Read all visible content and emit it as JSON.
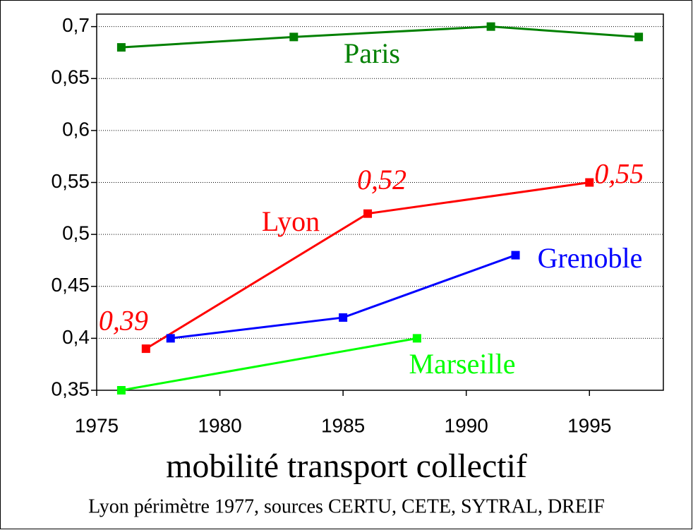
{
  "chart_data": {
    "type": "line",
    "title": "mobilité transport collectif",
    "subtitle": "Lyon périmètre 1977, sources CERTU, CETE, SYTRAL, DREIF",
    "xlim": [
      1975,
      1998
    ],
    "xticks": [
      1975,
      1980,
      1985,
      1990,
      1995
    ],
    "ylim": [
      0.35,
      0.712
    ],
    "yticks": [
      {
        "value": 0.35,
        "label": "0,35"
      },
      {
        "value": 0.4,
        "label": "0,4"
      },
      {
        "value": 0.45,
        "label": "0,45"
      },
      {
        "value": 0.5,
        "label": "0,5"
      },
      {
        "value": 0.55,
        "label": "0,55"
      },
      {
        "value": 0.6,
        "label": "0,6"
      },
      {
        "value": 0.65,
        "label": "0,65"
      },
      {
        "value": 0.7,
        "label": "0,7"
      }
    ],
    "grid": true,
    "series": [
      {
        "name": "Paris",
        "color": "#008000",
        "x": [
          1976,
          1983,
          1991,
          1997
        ],
        "values": [
          0.68,
          0.69,
          0.7,
          0.69
        ]
      },
      {
        "name": "Lyon",
        "color": "#ff0000",
        "x": [
          1977,
          1986,
          1995
        ],
        "values": [
          0.39,
          0.52,
          0.55
        ],
        "value_labels": [
          "0,39",
          "0,52",
          "0,55"
        ]
      },
      {
        "name": "Grenoble",
        "color": "#0000ff",
        "x": [
          1978,
          1985,
          1992
        ],
        "values": [
          0.4,
          0.42,
          0.48
        ]
      },
      {
        "name": "Marseille",
        "color": "#00ff00",
        "x": [
          1976,
          1988
        ],
        "values": [
          0.35,
          0.4
        ]
      }
    ]
  }
}
